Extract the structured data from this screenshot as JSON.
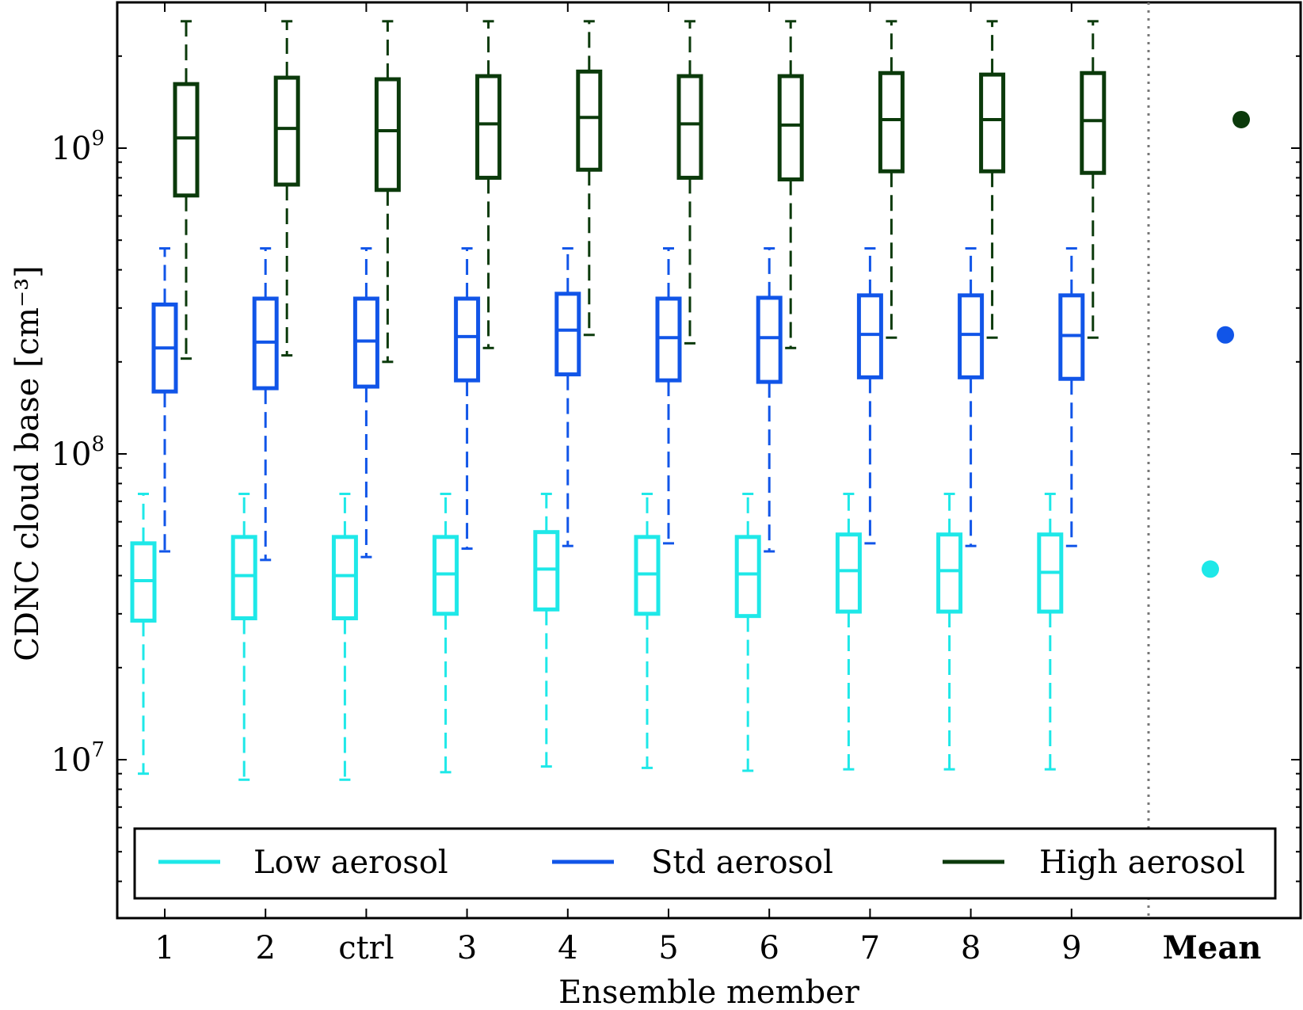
{
  "chart_data": {
    "type": "boxplot",
    "xlabel": "Ensemble member",
    "ylabel": "CDNC cloud base [cm⁻³]",
    "yscale": "log",
    "ylim": [
      3500000,
      5000000000
    ],
    "grid": false,
    "legend_position": "bottom",
    "y_ticks": [
      {
        "value": 10000000,
        "base": "10",
        "exp": "7"
      },
      {
        "value": 100000000,
        "base": "10",
        "exp": "8"
      },
      {
        "value": 1000000000,
        "base": "10",
        "exp": "9"
      }
    ],
    "categories": [
      "1",
      "2",
      "ctrl",
      "3",
      "4",
      "5",
      "6",
      "7",
      "8",
      "9"
    ],
    "mean_label": "Mean",
    "series": [
      {
        "name": "Low aerosol",
        "color": "#1ee8e8",
        "boxes": [
          {
            "whislo": 9000000,
            "q1": 28500000,
            "med": 38500000,
            "q3": 51000000,
            "whishi": 74000000
          },
          {
            "whislo": 8600000,
            "q1": 29000000,
            "med": 40000000,
            "q3": 53500000,
            "whishi": 74000000
          },
          {
            "whislo": 8600000,
            "q1": 29000000,
            "med": 40000000,
            "q3": 53500000,
            "whishi": 74000000
          },
          {
            "whislo": 9100000,
            "q1": 30000000,
            "med": 40500000,
            "q3": 53500000,
            "whishi": 74000000
          },
          {
            "whislo": 9500000,
            "q1": 31000000,
            "med": 42000000,
            "q3": 55500000,
            "whishi": 74000000
          },
          {
            "whislo": 9400000,
            "q1": 30000000,
            "med": 40500000,
            "q3": 53500000,
            "whishi": 74000000
          },
          {
            "whislo": 9200000,
            "q1": 29500000,
            "med": 40500000,
            "q3": 53500000,
            "whishi": 74000000
          },
          {
            "whislo": 9300000,
            "q1": 30500000,
            "med": 41500000,
            "q3": 54500000,
            "whishi": 74000000
          },
          {
            "whislo": 9300000,
            "q1": 30500000,
            "med": 41500000,
            "q3": 54500000,
            "whishi": 74000000
          },
          {
            "whislo": 9300000,
            "q1": 30500000,
            "med": 41000000,
            "q3": 54500000,
            "whishi": 74000000
          }
        ],
        "mean": 42000000
      },
      {
        "name": "Std aerosol",
        "color": "#1155e8",
        "boxes": [
          {
            "whislo": 48000000,
            "q1": 160000000,
            "med": 222000000,
            "q3": 308000000,
            "whishi": 470000000
          },
          {
            "whislo": 45000000,
            "q1": 164000000,
            "med": 232000000,
            "q3": 322000000,
            "whishi": 470000000
          },
          {
            "whislo": 46000000,
            "q1": 166000000,
            "med": 234000000,
            "q3": 322000000,
            "whishi": 470000000
          },
          {
            "whislo": 49000000,
            "q1": 174000000,
            "med": 242000000,
            "q3": 322000000,
            "whishi": 470000000
          },
          {
            "whislo": 50000000,
            "q1": 182000000,
            "med": 254000000,
            "q3": 334000000,
            "whishi": 470000000
          },
          {
            "whislo": 51000000,
            "q1": 174000000,
            "med": 240000000,
            "q3": 322000000,
            "whishi": 470000000
          },
          {
            "whislo": 48000000,
            "q1": 172000000,
            "med": 240000000,
            "q3": 324000000,
            "whishi": 470000000
          },
          {
            "whislo": 51000000,
            "q1": 178000000,
            "med": 246000000,
            "q3": 330000000,
            "whishi": 470000000
          },
          {
            "whislo": 50000000,
            "q1": 178000000,
            "med": 246000000,
            "q3": 330000000,
            "whishi": 470000000
          },
          {
            "whislo": 50000000,
            "q1": 176000000,
            "med": 244000000,
            "q3": 330000000,
            "whishi": 470000000
          }
        ],
        "mean": 245000000
      },
      {
        "name": "High aerosol",
        "color": "#0b3a0b",
        "boxes": [
          {
            "whislo": 205000000,
            "q1": 700000000,
            "med": 1080000000,
            "q3": 1620000000,
            "whishi": 2600000000
          },
          {
            "whislo": 210000000,
            "q1": 760000000,
            "med": 1160000000,
            "q3": 1700000000,
            "whishi": 2600000000
          },
          {
            "whislo": 200000000,
            "q1": 730000000,
            "med": 1140000000,
            "q3": 1680000000,
            "whishi": 2600000000
          },
          {
            "whislo": 222000000,
            "q1": 800000000,
            "med": 1200000000,
            "q3": 1720000000,
            "whishi": 2600000000
          },
          {
            "whislo": 245000000,
            "q1": 850000000,
            "med": 1260000000,
            "q3": 1780000000,
            "whishi": 2600000000
          },
          {
            "whislo": 230000000,
            "q1": 800000000,
            "med": 1200000000,
            "q3": 1720000000,
            "whishi": 2600000000
          },
          {
            "whislo": 222000000,
            "q1": 790000000,
            "med": 1190000000,
            "q3": 1720000000,
            "whishi": 2600000000
          },
          {
            "whislo": 240000000,
            "q1": 840000000,
            "med": 1240000000,
            "q3": 1760000000,
            "whishi": 2600000000
          },
          {
            "whislo": 240000000,
            "q1": 840000000,
            "med": 1240000000,
            "q3": 1740000000,
            "whishi": 2600000000
          },
          {
            "whislo": 240000000,
            "q1": 830000000,
            "med": 1230000000,
            "q3": 1760000000,
            "whishi": 2600000000
          }
        ],
        "mean": 1240000000
      }
    ]
  }
}
